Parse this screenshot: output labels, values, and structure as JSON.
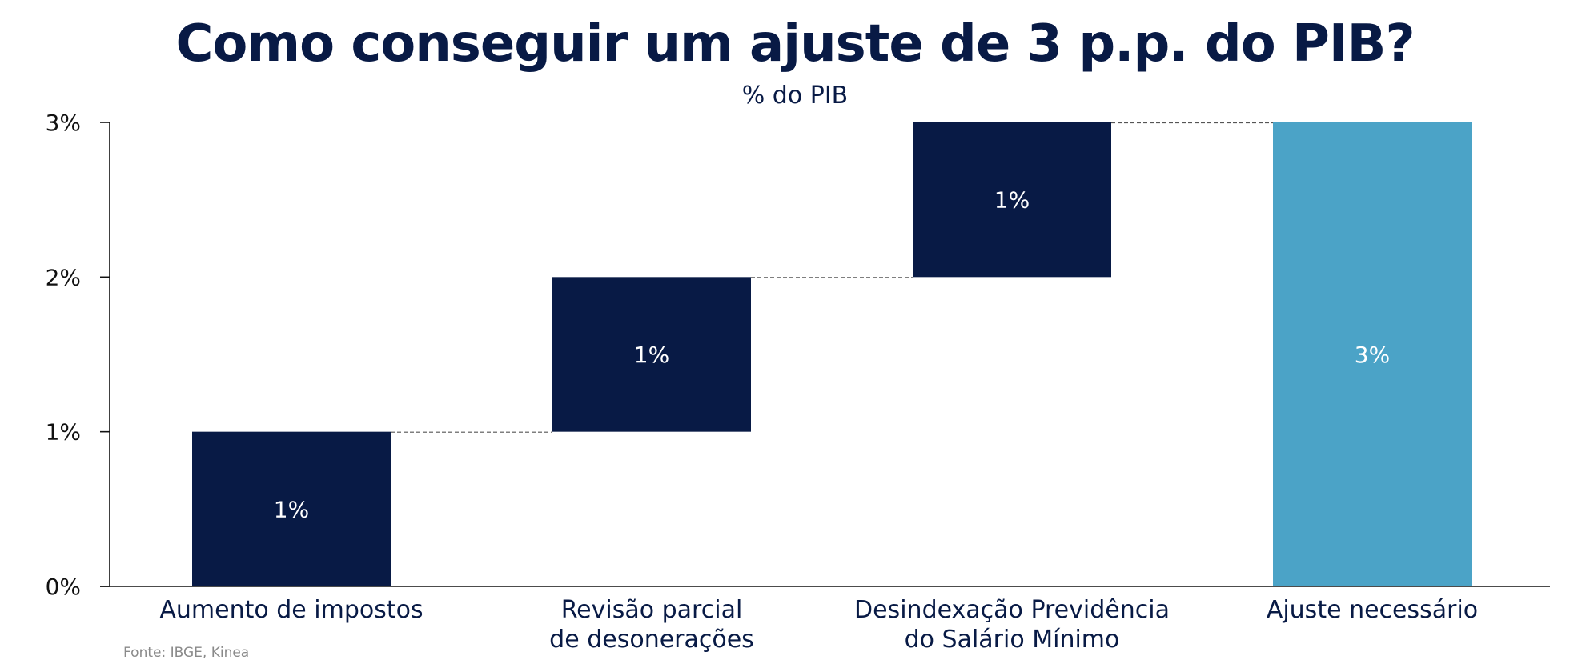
{
  "chart_data": {
    "type": "bar",
    "variant": "waterfall",
    "title": "Como conseguir um ajuste de 3 p.p. do PIB?",
    "subtitle": "% do PIB",
    "source": "Fonte: IBGE, Kinea",
    "categories": [
      [
        "Aumento de impostos"
      ],
      [
        "Revisão parcial",
        "de desonerações"
      ],
      [
        "Desindexação Previdência",
        "do Salário Mínimo"
      ],
      [
        "Ajuste necessário"
      ]
    ],
    "values": [
      1,
      1,
      1,
      3
    ],
    "bases": [
      0,
      1,
      2,
      0
    ],
    "data_labels": [
      "1%",
      "1%",
      "1%",
      "3%"
    ],
    "bar_kinds": [
      "step",
      "step",
      "step",
      "total"
    ],
    "colors": {
      "step": "#081a45",
      "total": "#4ba3c7",
      "connector": "#555555",
      "axis": "#111111"
    },
    "ylim": [
      0,
      3
    ],
    "yticks": [
      0,
      1,
      2,
      3
    ],
    "ytick_labels": [
      "0%",
      "1%",
      "2%",
      "3%"
    ],
    "connectors": true,
    "grid": false,
    "legend": "none"
  }
}
